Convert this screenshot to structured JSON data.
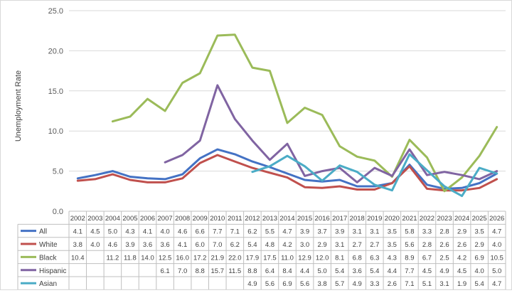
{
  "chart_data": {
    "type": "line",
    "ylabel": "Unemployment Rate",
    "ylim": [
      0,
      25
    ],
    "y_ticks": [
      "0.0",
      "5.0",
      "10.0",
      "15.0",
      "20.0",
      "25.0"
    ],
    "grid": "horizontal",
    "legend": "data-table",
    "categories": [
      "2002",
      "2003",
      "2004",
      "2005",
      "2006",
      "2007",
      "2008",
      "2009",
      "2010",
      "2011",
      "2012",
      "2013",
      "2014",
      "2015",
      "2016",
      "2017",
      "2018",
      "2019",
      "2020",
      "2021",
      "2022",
      "2023",
      "2024",
      "2025",
      "2026"
    ],
    "series": [
      {
        "name": "All",
        "color": "#4472C4",
        "values": [
          4.1,
          4.5,
          5.0,
          4.3,
          4.1,
          4.0,
          4.6,
          6.6,
          7.7,
          7.1,
          6.2,
          5.5,
          4.7,
          3.9,
          3.7,
          3.9,
          3.1,
          3.1,
          3.5,
          5.8,
          3.3,
          2.8,
          2.9,
          3.5,
          4.7
        ],
        "labels": [
          "4.1",
          "4.5",
          "5.0",
          "4.3",
          "4.1",
          "4.0",
          "4.6",
          "6.6",
          "7.7",
          "7.1",
          "6.2",
          "5.5",
          "4.7",
          "3.9",
          "3.7",
          "3.9",
          "3.1",
          "3.1",
          "3.5",
          "5.8",
          "3.3",
          "2.8",
          "2.9",
          "3.5",
          "4.7"
        ]
      },
      {
        "name": "White",
        "color": "#C0504D",
        "values": [
          3.8,
          4.0,
          4.6,
          3.9,
          3.6,
          3.6,
          4.1,
          6.0,
          7.0,
          6.2,
          5.4,
          4.8,
          4.2,
          3.0,
          2.9,
          3.1,
          2.7,
          2.7,
          3.5,
          5.6,
          2.8,
          2.6,
          2.6,
          2.9,
          4.0
        ],
        "labels": [
          "3.8",
          "4.0",
          "4.6",
          "3.9",
          "3.6",
          "3.6",
          "4.1",
          "6.0",
          "7.0",
          "6.2",
          "5.4",
          "4.8",
          "4.2",
          "3.0",
          "2.9",
          "3.1",
          "2.7",
          "2.7",
          "3.5",
          "5.6",
          "2.8",
          "2.6",
          "2.6",
          "2.9",
          "4.0"
        ]
      },
      {
        "name": "Black",
        "color": "#9BBB59",
        "values": [
          10.4,
          null,
          11.2,
          11.8,
          14.0,
          12.5,
          16.0,
          17.2,
          21.9,
          22.0,
          17.9,
          17.5,
          11.0,
          12.9,
          12.0,
          8.1,
          6.8,
          6.3,
          4.3,
          8.9,
          6.7,
          2.5,
          4.2,
          6.9,
          10.5
        ],
        "labels": [
          "10.4",
          "",
          "11.2",
          "11.8",
          "14.0",
          "12.5",
          "16.0",
          "17.2",
          "21.9",
          "22.0",
          "17.9",
          "17.5",
          "11.0",
          "12.9",
          "12.0",
          "8.1",
          "6.8",
          "6.3",
          "4.3",
          "8.9",
          "6.7",
          "2.5",
          "4.2",
          "6.9",
          "10.5"
        ]
      },
      {
        "name": "Hispanic",
        "color": "#8064A2",
        "values": [
          null,
          null,
          null,
          null,
          null,
          6.1,
          7.0,
          8.8,
          15.7,
          11.5,
          8.8,
          6.4,
          8.4,
          4.4,
          5.0,
          5.4,
          3.6,
          5.4,
          4.4,
          7.7,
          4.5,
          4.9,
          4.5,
          4.0,
          5.0
        ],
        "labels": [
          "",
          "",
          "",
          "",
          "",
          "6.1",
          "7.0",
          "8.8",
          "15.7",
          "11.5",
          "8.8",
          "6.4",
          "8.4",
          "4.4",
          "5.0",
          "5.4",
          "3.6",
          "5.4",
          "4.4",
          "7.7",
          "4.5",
          "4.9",
          "4.5",
          "4.0",
          "5.0"
        ]
      },
      {
        "name": "Asian",
        "color": "#4BACC6",
        "values": [
          null,
          null,
          null,
          null,
          null,
          null,
          null,
          null,
          null,
          null,
          4.9,
          5.6,
          6.9,
          5.6,
          3.8,
          5.7,
          4.9,
          3.3,
          2.6,
          7.1,
          5.1,
          3.1,
          1.9,
          5.4,
          4.7
        ],
        "labels": [
          "",
          "",
          "",
          "",
          "",
          "",
          "",
          "",
          "",
          "",
          "4.9",
          "5.6",
          "6.9",
          "5.6",
          "3.8",
          "5.7",
          "4.9",
          "3.3",
          "2.6",
          "7.1",
          "5.1",
          "3.1",
          "1.9",
          "5.4",
          "4.7"
        ]
      }
    ]
  }
}
